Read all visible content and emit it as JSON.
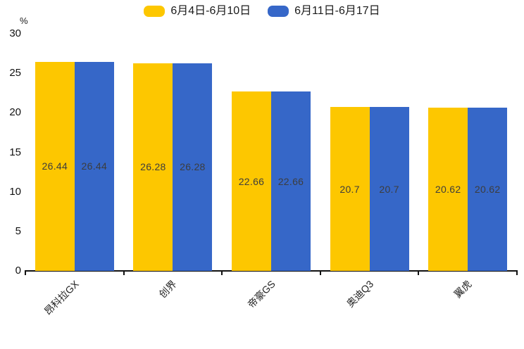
{
  "legend": {
    "items": [
      {
        "label": "6月4日-6月10日"
      },
      {
        "label": "6月11日-6月17日"
      }
    ]
  },
  "chart_data": {
    "type": "bar",
    "title": "",
    "ylabel": "%",
    "xlabel": "",
    "categories": [
      "昂科拉GX",
      "创界",
      "帝豪GS",
      "奥迪Q3",
      "翼虎"
    ],
    "series": [
      {
        "name": "6月4日-6月10日",
        "color": "#FDC700",
        "values": [
          26.44,
          26.28,
          22.66,
          20.7,
          20.62
        ]
      },
      {
        "name": "6月11日-6月17日",
        "color": "#3667C8",
        "values": [
          26.44,
          26.28,
          22.66,
          20.7,
          20.62
        ]
      }
    ],
    "value_labels": [
      [
        "26.44",
        "26.28",
        "22.66",
        "20.7",
        "20.62"
      ],
      [
        "26.44",
        "26.28",
        "22.66",
        "20.7",
        "20.62"
      ]
    ],
    "ylim": [
      0,
      30
    ],
    "yticks": [
      0,
      5,
      10,
      15,
      20,
      25,
      30
    ],
    "grid": false,
    "legend_position": "top",
    "bar_value_label_position": "center",
    "xtick_label_rotation_deg": 45
  }
}
